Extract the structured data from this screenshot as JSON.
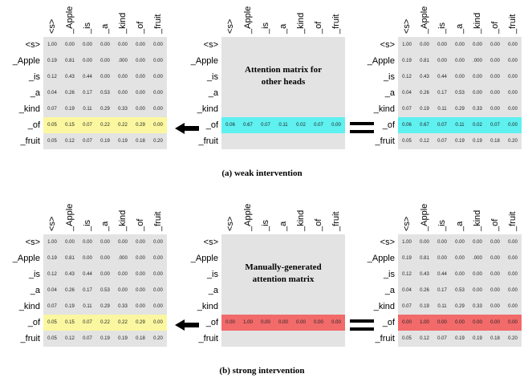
{
  "tokens": [
    "<s>",
    "_Apple",
    "_is",
    "_a",
    "_kind",
    "_of",
    "_fruit"
  ],
  "matrix": [
    [
      "1.00",
      "0.00",
      "0.00",
      "0.00",
      "0.00",
      "0.00",
      "0.00"
    ],
    [
      "0.19",
      "0.81",
      "0.00",
      "0.00",
      ".000",
      "0.00",
      "0.00"
    ],
    [
      "0.12",
      "0.43",
      "0.44",
      "0.00",
      "0.00",
      "0.00",
      "0.00"
    ],
    [
      "0.04",
      "0.26",
      "0.17",
      "0.53",
      "0.00",
      "0.00",
      "0.00"
    ],
    [
      "0.07",
      "0.19",
      "0.11",
      "0.29",
      "0.33",
      "0.00",
      "0.00"
    ],
    [
      "0.05",
      "0.15",
      "0.07",
      "0.22",
      "0.22",
      "0.29",
      "0.00"
    ],
    [
      "0.05",
      "0.12",
      "0.07",
      "0.19",
      "0.19",
      "0.18",
      "0.20"
    ]
  ],
  "weak": {
    "caption": "(a) weak intervention",
    "other_heads_text": "Attention matrix for other heads",
    "other_heads_row": [
      "0.06",
      "0.67",
      "0.07",
      "0.11",
      "0.02",
      "0.07",
      "0.00"
    ],
    "result_row": [
      "0.06",
      "0.67",
      "0.07",
      "0.11",
      "0.02",
      "0.07",
      "0.00"
    ]
  },
  "strong": {
    "caption": "(b) strong intervention",
    "manual_text": "Manually-generated attention matrix",
    "manual_row": [
      "0.00",
      "1.00",
      "0.00",
      "0.00",
      "0.00",
      "0.00",
      "0.00"
    ],
    "result_row": [
      "0.00",
      "1.00",
      "0.00",
      "0.00",
      "0.00",
      "0.00",
      "0.00"
    ]
  },
  "colors": {
    "grid": "#e3e3e3",
    "yellow": "#fbf7a0",
    "cyan": "#5ff0f0",
    "red": "#f26a6a"
  }
}
